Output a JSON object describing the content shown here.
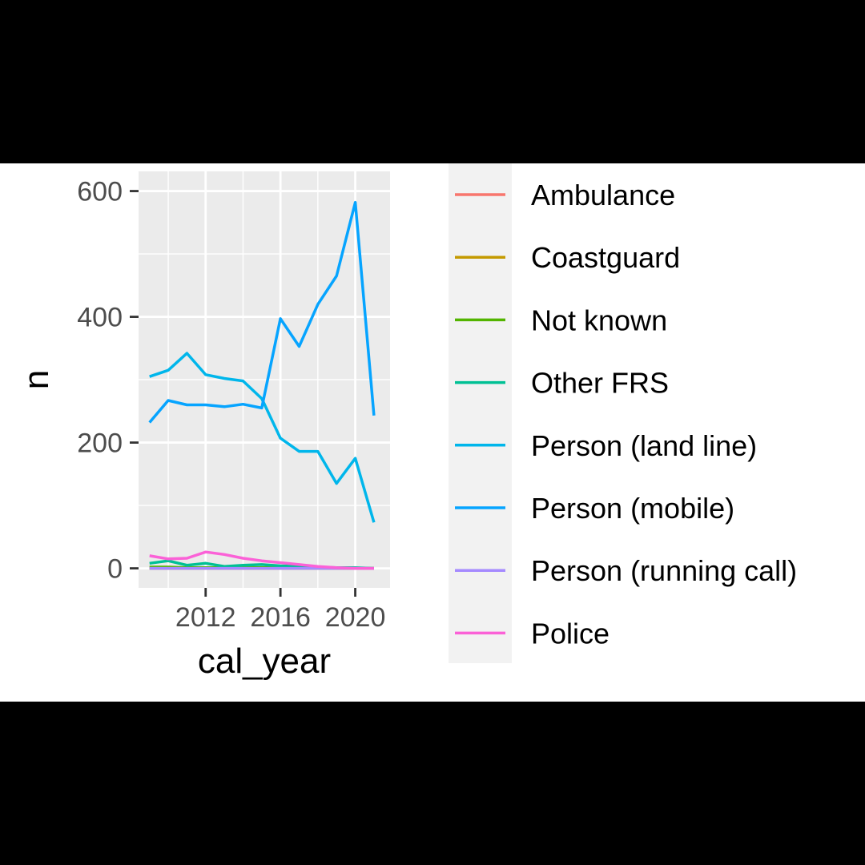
{
  "chart_data": {
    "type": "line",
    "xlabel": "cal_year",
    "ylabel": "n",
    "xlim": [
      2008,
      2021
    ],
    "ylim": [
      0,
      600
    ],
    "x_ticks": [
      2012,
      2016,
      2020
    ],
    "y_ticks": [
      0,
      200,
      400,
      600
    ],
    "grid": true,
    "legend_position": "right",
    "x": [
      2009,
      2010,
      2011,
      2012,
      2013,
      2014,
      2015,
      2016,
      2017,
      2018,
      2019,
      2020,
      2021
    ],
    "series": [
      {
        "name": "Ambulance",
        "color": "#F8766D",
        "values": [
          0,
          0,
          0,
          0,
          0,
          0,
          0,
          0,
          0,
          0,
          0,
          0,
          0
        ]
      },
      {
        "name": "Coastguard",
        "color": "#C49A00",
        "values": [
          0,
          0,
          0,
          0,
          0,
          0,
          0,
          0,
          0,
          0,
          0,
          0,
          0
        ]
      },
      {
        "name": "Not known",
        "color": "#53B400",
        "values": [
          2,
          2,
          1,
          1,
          1,
          1,
          1,
          1,
          1,
          1,
          1,
          0,
          0
        ]
      },
      {
        "name": "Other FRS",
        "color": "#00C094",
        "values": [
          8,
          12,
          5,
          8,
          3,
          5,
          6,
          4,
          3,
          2,
          1,
          1,
          0
        ]
      },
      {
        "name": "Person (land line)",
        "color": "#00B6EB",
        "values": [
          305,
          315,
          342,
          308,
          302,
          298,
          270,
          207,
          186,
          186,
          135,
          175,
          73
        ]
      },
      {
        "name": "Person (mobile)",
        "color": "#06A4FF",
        "values": [
          232,
          267,
          260,
          260,
          257,
          261,
          255,
          397,
          353,
          420,
          465,
          582,
          243
        ]
      },
      {
        "name": "Person (running call)",
        "color": "#A58AFF",
        "values": [
          0,
          0,
          0,
          0,
          0,
          0,
          0,
          0,
          0,
          0,
          0,
          0,
          0
        ]
      },
      {
        "name": "Police",
        "color": "#FB61D7",
        "values": [
          20,
          15,
          16,
          26,
          22,
          16,
          12,
          9,
          6,
          3,
          1,
          0,
          0
        ]
      }
    ]
  }
}
